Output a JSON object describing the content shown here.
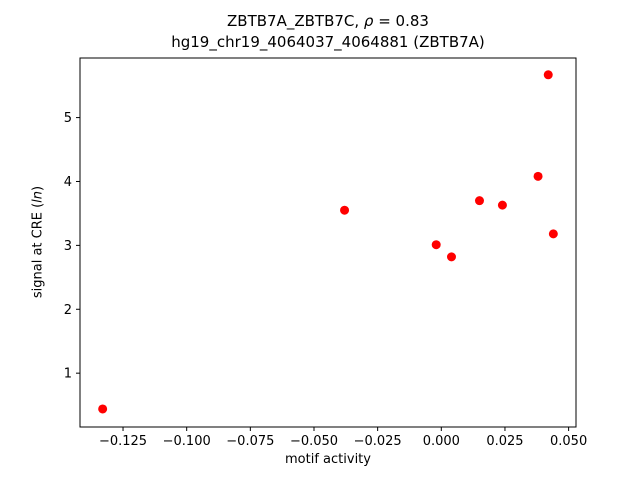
{
  "header": {
    "line1_segments": [
      {
        "text": "ZBTB7A_ZBTB7C, ",
        "italic": false
      },
      {
        "text": "ρ",
        "italic": true
      },
      {
        "text": " = 0.83",
        "italic": false
      }
    ],
    "line2": "hg19_chr19_4064037_4064881 (ZBTB7A)"
  },
  "chart_data": {
    "type": "scatter",
    "title": "ZBTB7A_ZBTB7C, ρ = 0.83\nhg19_chr19_4064037_4064881 (ZBTB7A)",
    "xlabel": "motif activity",
    "ylabel": "signal at CRE (ln)",
    "ylabel_segments": [
      {
        "text": "signal at CRE (",
        "italic": false
      },
      {
        "text": "ln",
        "italic": true
      },
      {
        "text": ")",
        "italic": false
      }
    ],
    "xlim": [
      -0.1419,
      0.0529
    ],
    "ylim": [
      0.1575,
      5.9325
    ],
    "xticks": [
      -0.125,
      -0.1,
      -0.075,
      -0.05,
      -0.025,
      0.0,
      0.025,
      0.05
    ],
    "xtick_labels": [
      "−0.125",
      "−0.100",
      "−0.075",
      "−0.050",
      "−0.025",
      "0.000",
      "0.025",
      "0.050"
    ],
    "yticks": [
      1,
      2,
      3,
      4,
      5
    ],
    "ytick_labels": [
      "1",
      "2",
      "3",
      "4",
      "5"
    ],
    "points": [
      [
        -0.133,
        0.44
      ],
      [
        -0.038,
        3.55
      ],
      [
        -0.002,
        3.01
      ],
      [
        0.004,
        2.82
      ],
      [
        0.015,
        3.7
      ],
      [
        0.024,
        3.63
      ],
      [
        0.038,
        4.08
      ],
      [
        0.042,
        5.67
      ],
      [
        0.044,
        3.18
      ]
    ],
    "marker_color": "#ff0000",
    "grid": false,
    "legend": null
  }
}
